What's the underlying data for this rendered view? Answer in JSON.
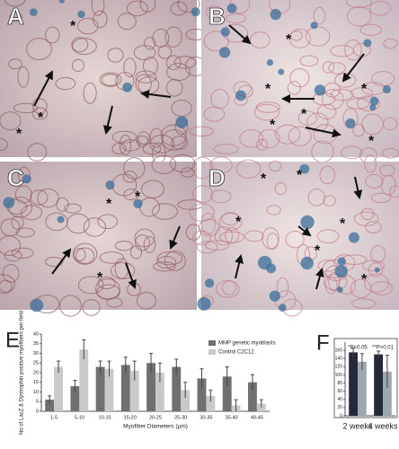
{
  "panels": [
    {
      "label": "A",
      "marks": [
        "*",
        "*",
        "*"
      ]
    },
    {
      "label": "B",
      "marks": [
        "*",
        "*",
        "*",
        "*",
        "*",
        "*"
      ]
    },
    {
      "label": "C",
      "marks": [
        "*",
        "*",
        "*"
      ]
    },
    {
      "label": "D",
      "marks": [
        "*",
        "*",
        "*",
        "*",
        "*",
        "*"
      ]
    }
  ],
  "chart_data": [
    {
      "type": "bar",
      "panel": "E",
      "ylabel": "No of LacZ & Dystrophin positive myofibers per field",
      "xlabel": "Myofiber Diameters (μm)",
      "categories": [
        "1-5",
        "5-10",
        "10-15",
        "15-20",
        "20-25",
        "25-30",
        "30-35",
        "35-40",
        "40-45"
      ],
      "series": [
        {
          "name": "MMP genetic myoblasts",
          "color": "#707070",
          "values": [
            6,
            13,
            23,
            24,
            25,
            23,
            17,
            18,
            15
          ],
          "errors": [
            2,
            3,
            3,
            4,
            5,
            4,
            5,
            5,
            4
          ]
        },
        {
          "name": "Control C2C12",
          "color": "#c9c9c9",
          "values": [
            23,
            32,
            22,
            21,
            20,
            11,
            8,
            3,
            4
          ],
          "errors": [
            3,
            5,
            4,
            5,
            5,
            4,
            3,
            3,
            2
          ]
        }
      ],
      "ylim": [
        0,
        40
      ],
      "yticks": [
        0,
        5,
        10,
        15,
        20,
        25,
        30,
        35,
        40
      ],
      "grid": false,
      "legend": "top-right"
    },
    {
      "type": "bar",
      "panel": "F",
      "categories": [
        "2 weeks",
        "4 weeks"
      ],
      "annotations": [
        "*P<0.05",
        "**P<0.01"
      ],
      "series": [
        {
          "color": "#242838",
          "values": [
            155,
            150
          ],
          "errors": [
            10,
            8
          ]
        },
        {
          "color": "#9ea6b0",
          "values": [
            132,
            108
          ],
          "errors": [
            20,
            40
          ]
        }
      ],
      "ylim": [
        0,
        180
      ],
      "yticks": [
        0,
        20,
        40,
        60,
        80,
        100,
        120,
        140,
        160
      ],
      "grid": false
    }
  ]
}
